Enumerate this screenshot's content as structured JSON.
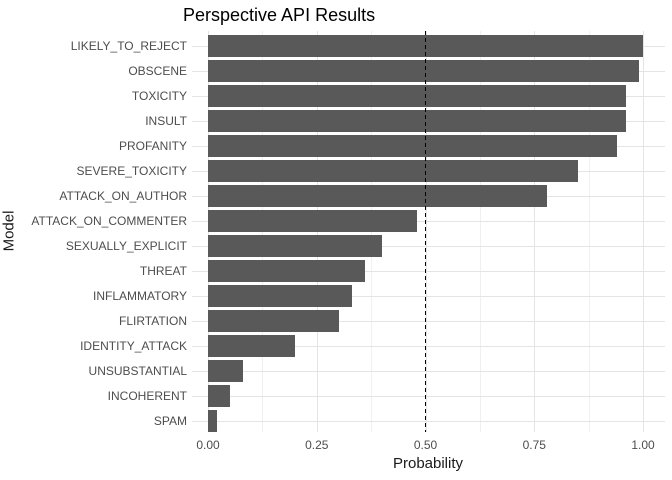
{
  "chart_data": {
    "type": "bar",
    "orientation": "horizontal",
    "title": "Perspective API Results",
    "xlabel": "Probability",
    "ylabel": "Model",
    "categories": [
      "LIKELY_TO_REJECT",
      "OBSCENE",
      "TOXICITY",
      "INSULT",
      "PROFANITY",
      "SEVERE_TOXICITY",
      "ATTACK_ON_AUTHOR",
      "ATTACK_ON_COMMENTER",
      "SEXUALLY_EXPLICIT",
      "THREAT",
      "INFLAMMATORY",
      "FLIRTATION",
      "IDENTITY_ATTACK",
      "UNSUBSTANTIAL",
      "INCOHERENT",
      "SPAM"
    ],
    "values": [
      1.0,
      0.99,
      0.96,
      0.96,
      0.94,
      0.85,
      0.78,
      0.48,
      0.4,
      0.36,
      0.33,
      0.3,
      0.2,
      0.08,
      0.05,
      0.02
    ],
    "xlim": [
      0,
      1
    ],
    "x_ticks": [
      {
        "value": 0.0,
        "label": "0.00"
      },
      {
        "value": 0.25,
        "label": "0.25"
      },
      {
        "value": 0.5,
        "label": "0.50"
      },
      {
        "value": 0.75,
        "label": "0.75"
      },
      {
        "value": 1.0,
        "label": "1.00"
      }
    ],
    "x_minor_ticks": [
      0.125,
      0.375,
      0.625,
      0.875
    ],
    "reference_line": {
      "value": 0.5,
      "style": "dashed"
    },
    "legend": "none",
    "grid": "on",
    "colors": {
      "bar": "#595959",
      "grid_major": "#E4E4E4",
      "grid_minor": "#F0F0F0",
      "axis_text": "#4D4D4D",
      "title_text": "#000000",
      "reference_line": "#000000",
      "background": "#FFFFFF"
    }
  }
}
